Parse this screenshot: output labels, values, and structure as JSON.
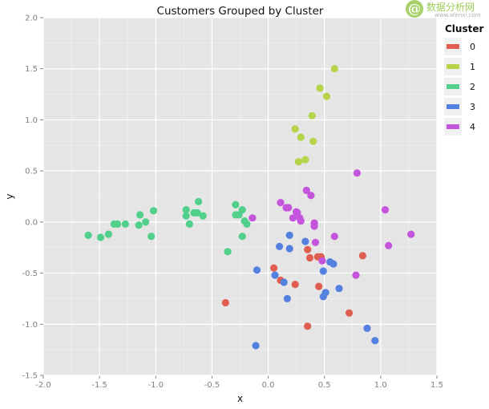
{
  "watermark": {
    "mark": "@",
    "brand_cn": "数据分析网",
    "brand_en": "www.afenxi.com"
  },
  "chart_data": {
    "type": "scatter",
    "title": "Customers Grouped by Cluster",
    "xlabel": "x",
    "ylabel": "y",
    "xlim": [
      -2.0,
      1.5
    ],
    "ylim": [
      -1.5,
      2.0
    ],
    "xticks": [
      "-2.0",
      "-1.5",
      "-1.0",
      "-0.5",
      "0.0",
      "0.5",
      "1.0",
      "1.5"
    ],
    "yticks": [
      "2.0",
      "1.5",
      "1.0",
      "0.5",
      "0.0",
      "-0.5",
      "-1.0",
      "-1.5"
    ],
    "grid": true,
    "legend": {
      "title": "Cluster",
      "position": "right"
    },
    "series": [
      {
        "name": "0",
        "color": "#e05d52",
        "points": [
          [
            0.05,
            -0.45
          ],
          [
            0.11,
            -0.57
          ],
          [
            0.24,
            -0.61
          ],
          [
            0.35,
            -0.27
          ],
          [
            0.37,
            -0.35
          ],
          [
            0.44,
            -0.34
          ],
          [
            0.47,
            -0.34
          ],
          [
            0.45,
            -0.63
          ],
          [
            0.35,
            -1.02
          ],
          [
            0.72,
            -0.89
          ],
          [
            0.84,
            -0.33
          ],
          [
            -0.38,
            -0.79
          ]
        ]
      },
      {
        "name": "1",
        "color": "#b5d44a",
        "points": [
          [
            0.59,
            1.5
          ],
          [
            0.46,
            1.31
          ],
          [
            0.52,
            1.23
          ],
          [
            0.39,
            1.04
          ],
          [
            0.24,
            0.91
          ],
          [
            0.29,
            0.83
          ],
          [
            0.4,
            0.79
          ],
          [
            0.33,
            0.61
          ],
          [
            0.27,
            0.59
          ]
        ]
      },
      {
        "name": "2",
        "color": "#50d08a",
        "points": [
          [
            -1.6,
            -0.13
          ],
          [
            -1.49,
            -0.15
          ],
          [
            -1.42,
            -0.12
          ],
          [
            -1.37,
            -0.02
          ],
          [
            -1.34,
            -0.02
          ],
          [
            -1.27,
            -0.02
          ],
          [
            -1.15,
            -0.03
          ],
          [
            -1.14,
            0.07
          ],
          [
            -1.09,
            0.0
          ],
          [
            -1.04,
            -0.14
          ],
          [
            -1.02,
            0.11
          ],
          [
            -0.73,
            0.12
          ],
          [
            -0.73,
            0.06
          ],
          [
            -0.7,
            -0.02
          ],
          [
            -0.66,
            0.09
          ],
          [
            -0.63,
            0.09
          ],
          [
            -0.62,
            0.2
          ],
          [
            -0.58,
            0.06
          ],
          [
            -0.36,
            -0.29
          ],
          [
            -0.29,
            0.17
          ],
          [
            -0.29,
            0.07
          ],
          [
            -0.26,
            0.07
          ],
          [
            -0.23,
            0.12
          ],
          [
            -0.21,
            0.01
          ],
          [
            -0.19,
            -0.02
          ],
          [
            -0.23,
            -0.14
          ]
        ]
      },
      {
        "name": "3",
        "color": "#5480e0",
        "points": [
          [
            -0.1,
            -0.47
          ],
          [
            0.06,
            -0.52
          ],
          [
            0.1,
            -0.24
          ],
          [
            0.14,
            -0.59
          ],
          [
            0.17,
            -0.75
          ],
          [
            0.19,
            -0.13
          ],
          [
            0.19,
            -0.26
          ],
          [
            0.33,
            -0.19
          ],
          [
            0.49,
            -0.48
          ],
          [
            0.49,
            -0.73
          ],
          [
            0.51,
            -0.69
          ],
          [
            0.55,
            -0.39
          ],
          [
            0.58,
            -0.41
          ],
          [
            0.63,
            -0.65
          ],
          [
            0.88,
            -1.04
          ],
          [
            0.95,
            -1.16
          ],
          [
            -0.11,
            -1.21
          ]
        ]
      },
      {
        "name": "4",
        "color": "#c554dc",
        "points": [
          [
            -0.14,
            0.04
          ],
          [
            0.11,
            0.19
          ],
          [
            0.16,
            0.14
          ],
          [
            0.18,
            0.14
          ],
          [
            0.22,
            0.04
          ],
          [
            0.25,
            0.1
          ],
          [
            0.26,
            0.09
          ],
          [
            0.28,
            0.04
          ],
          [
            0.29,
            0.01
          ],
          [
            0.34,
            0.31
          ],
          [
            0.38,
            0.26
          ],
          [
            0.41,
            -0.01
          ],
          [
            0.41,
            -0.04
          ],
          [
            0.42,
            -0.2
          ],
          [
            0.48,
            -0.38
          ],
          [
            0.59,
            -0.14
          ],
          [
            0.78,
            -0.52
          ],
          [
            0.79,
            0.48
          ],
          [
            1.04,
            0.12
          ],
          [
            1.07,
            -0.23
          ],
          [
            1.27,
            -0.12
          ]
        ]
      }
    ]
  }
}
